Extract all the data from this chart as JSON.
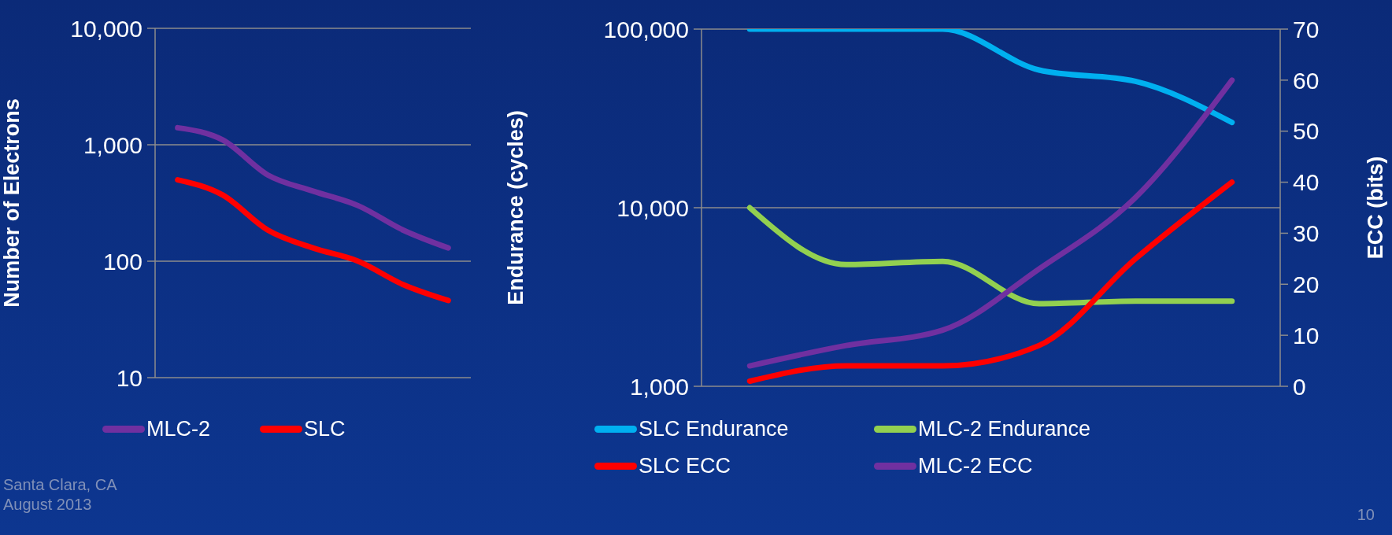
{
  "chart_data": [
    {
      "type": "line",
      "ylabel": "Number of Electrons",
      "categories": [
        null,
        null,
        null,
        null,
        null,
        null,
        null
      ],
      "log": true,
      "grid": "y",
      "legend": "bottom",
      "ylim": [
        10,
        10000
      ],
      "yticks": [
        10,
        100,
        {
          "value": 1000,
          "label": "1,000"
        },
        {
          "value": 10000,
          "label": "10,000"
        }
      ],
      "series": [
        {
          "name": "MLC-2",
          "color": "#7030a0",
          "values": [
            1400,
            1100,
            550,
            400,
            300,
            185,
            130
          ]
        },
        {
          "name": "SLC",
          "color": "#ff0000",
          "values": [
            500,
            370,
            185,
            130,
            100,
            63,
            46
          ]
        }
      ],
      "annotations": [
        "Santa Clara, CA",
        "August 2013"
      ]
    },
    {
      "type": "line",
      "ylabel": "Endurance (cycles)",
      "y2label": "ECC (bits)",
      "categories": [
        null,
        null,
        null,
        null,
        null,
        null
      ],
      "log": true,
      "grid": "y",
      "legend": "bottom",
      "ylim": [
        1000,
        100000
      ],
      "yticks": [
        {
          "value": 1000,
          "label": "1,000"
        },
        {
          "value": 10000,
          "label": "10,000"
        },
        {
          "value": 100000,
          "label": "100,000"
        }
      ],
      "y2lim": [
        0,
        70
      ],
      "y2ticks": [
        0,
        10,
        20,
        30,
        40,
        50,
        60,
        70
      ],
      "series": [
        {
          "name": "SLC Endurance",
          "color": "#00b0f0",
          "values": [
            100000,
            100000,
            100000,
            59000,
            51000,
            30000
          ]
        },
        {
          "name": "MLC-2 Endurance",
          "color": "#92d050",
          "values": [
            10000,
            4800,
            5000,
            2900,
            3000,
            3000
          ]
        },
        {
          "name": "SLC ECC",
          "color": "#ff0000",
          "axis": "y2",
          "values": [
            1,
            4,
            4,
            8,
            25,
            40
          ]
        },
        {
          "name": "MLC-2 ECC",
          "color": "#7030a0",
          "axis": "y2",
          "values": [
            4,
            8,
            11,
            23,
            37,
            60
          ]
        }
      ],
      "annotations": [
        "10"
      ]
    }
  ]
}
